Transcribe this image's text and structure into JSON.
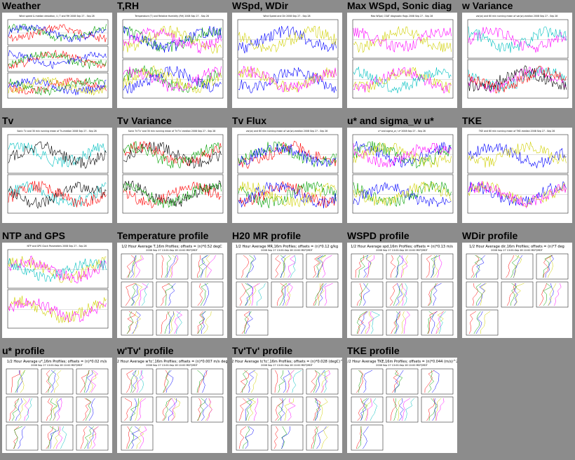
{
  "cells": [
    {
      "title": "Weather",
      "plot_title": "Wind speed & median deviation, U, T and RH   2008 Sep 27 - Sep 28",
      "kind": "ts",
      "top": "",
      "bottom": ""
    },
    {
      "title": "T,RH",
      "plot_title": "Temperature (T) and Relative Humidity (RH) 2008 Sep 27 - Sep 28",
      "kind": "ts",
      "top": "",
      "bottom": ""
    },
    {
      "title": "WSpd, WDir",
      "plot_title": "Wind Speed and Dir   2008 Sep 27 - Sep 28",
      "kind": "ts",
      "top": "",
      "bottom": ""
    },
    {
      "title": "Max WSpd, Sonic diag",
      "plot_title": "Max WSpd, CSAT diagnostic flags   2008 Sep 27 - Sep 28",
      "kind": "ts",
      "top": "",
      "bottom": ""
    },
    {
      "title": "w Variance",
      "plot_title": "var(w) and 60 min running mean of var(w)-median 2008 Sep 27 - Sep 28",
      "kind": "ts",
      "top": "",
      "bottom": ""
    },
    {
      "title": "Tv",
      "plot_title": "Sonic Tv and 30 min running mean of Tv-median 2008 Sep 27 - Sep 28",
      "kind": "ts",
      "top": "",
      "bottom": ""
    },
    {
      "title": "Tv Variance",
      "plot_title": "Sonic Tv'Tv' and 30 min running mean of Tv'Tv'-median 2008 Sep 27 - Sep 28",
      "kind": "ts",
      "top": "",
      "bottom": ""
    },
    {
      "title": "Tv Flux",
      "plot_title": "var(w) and 60 min running mean of var(w)-median 2008 Sep 27 - Sep 28",
      "kind": "ts",
      "top": "",
      "bottom": ""
    },
    {
      "title": "u* and sigma_w u*",
      "plot_title": "u* and sigma_w / u*   2008 Sep 27 - Sep 28",
      "kind": "ts",
      "top": "",
      "bottom": ""
    },
    {
      "title": "TKE",
      "plot_title": "TKE and 60 min running mean of TKE-median 2008 Sep 27 - Sep 28",
      "kind": "ts",
      "top": "",
      "bottom": ""
    },
    {
      "title": "NTP and GPS",
      "plot_title": "NTP and GPS Clock Parameters 2008 Sep 27 - Sep 28",
      "kind": "ts",
      "top": "",
      "bottom": ""
    },
    {
      "title": "Temperature profile",
      "plot_title": "",
      "kind": "profile",
      "top": "1/2 Hour Average T,16m Profiles; offsets = (n)*0.52 degC",
      "bottom": "2008 Sep 27 13:00-Sep 28 10:00 MDT/MDT"
    },
    {
      "title": "H20 MR profile",
      "plot_title": "",
      "kind": "profile",
      "top": "1/2 Hour Average MR,16m Profiles; offsets = (n)*0.12 g/kg",
      "bottom": "2008 Sep 27 13:00-Sep 28 10:00 MDT/MDT"
    },
    {
      "title": "WSPD profile",
      "plot_title": "",
      "kind": "profile",
      "top": "1/2 Hour Average spd,16m Profiles; offsets = (n)*0.13 m/s",
      "bottom": "2008 Sep 27 13:00-Sep 28 10:00 MDT/MDT"
    },
    {
      "title": "WDir profile",
      "plot_title": "",
      "kind": "profile",
      "top": "1/2 Hour Average dir,16m Profiles; offsets = (n)*7 deg",
      "bottom": "2008 Sep 27 13:00-Sep 28 10:00 MDT/MDT"
    },
    {
      "title": "u* profile",
      "plot_title": "",
      "kind": "profile",
      "top": "1/2 Hour Average u*,16m Profiles; offsets = (n)*0.02 m/s",
      "bottom": "2008 Sep 27 13:00-Sep 28 10:00 MDT/MDT"
    },
    {
      "title": "w'Tv' profile",
      "plot_title": "",
      "kind": "profile",
      "top": "1/2 Hour Average w'tc',16m Profiles; offsets = (n)*0.007 m/s degC",
      "bottom": "2008 Sep 27 13:00-Sep 28 10:00 MDT/MDT"
    },
    {
      "title": "Tv'Tv' profile",
      "plot_title": "",
      "kind": "profile",
      "top": "1/2 Hour Average tc'tc',16m Profiles; offsets = (n)*0.028 (degC)^2",
      "bottom": "2008 Sep 27 13:00-Sep 28 10:00 MDT/MDT"
    },
    {
      "title": "TKE profile",
      "plot_title": "",
      "kind": "profile",
      "top": "1/2 Hour Average TKE,16m Profiles; offsets = (n)*0.044 (m/s)^2",
      "bottom": "2008 Sep 27 13:00-Sep 28 10:00 MDT/MDT"
    }
  ],
  "series_colors": [
    "#000000",
    "#ff0000",
    "#00a000",
    "#0000ff",
    "#d0d000",
    "#ff00ff",
    "#00c0c0"
  ]
}
